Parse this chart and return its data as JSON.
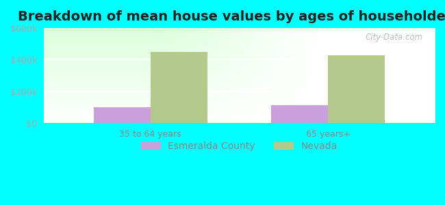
{
  "title": "Breakdown of mean house values by ages of householders",
  "categories": [
    "35 to 64 years",
    "65 years+"
  ],
  "esmeralda_values": [
    100000,
    115000
  ],
  "nevada_values": [
    450000,
    430000
  ],
  "esmeralda_color": "#c9a0dc",
  "nevada_color": "#b5c98a",
  "background_color": "#00ffff",
  "ylim": [
    0,
    600000
  ],
  "yticks": [
    0,
    200000,
    400000,
    600000
  ],
  "ytick_labels": [
    "$0",
    "$200k",
    "$400k",
    "$600k"
  ],
  "bar_width": 0.32,
  "title_fontsize": 14,
  "tick_fontsize": 9,
  "legend_fontsize": 10,
  "watermark": "City-Data.com"
}
